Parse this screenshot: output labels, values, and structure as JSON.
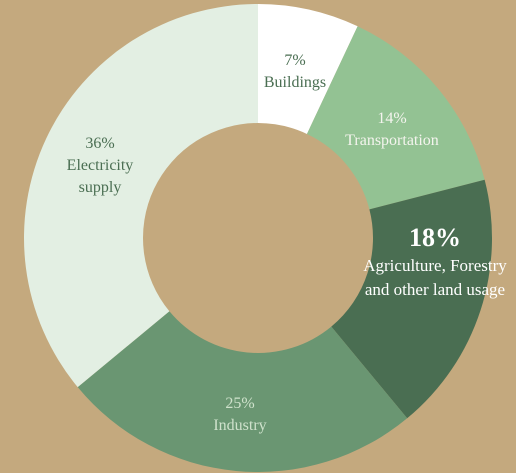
{
  "chart_data": {
    "type": "donut",
    "categories": [
      "Buildings",
      "Transportation",
      "Agriculture, Forestry and other land usage",
      "Industry",
      "Electricity supply"
    ],
    "values": [
      7,
      14,
      18,
      25,
      36
    ],
    "value_labels": [
      "7%",
      "14%",
      "18%",
      "25%",
      "36%"
    ],
    "colors": [
      "#ffffff",
      "#93c293",
      "#4a6e52",
      "#6a9672",
      "#e3efe3"
    ]
  }
}
